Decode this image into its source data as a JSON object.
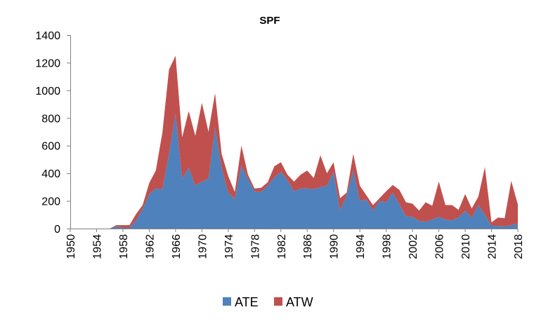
{
  "chart_data": {
    "type": "area",
    "stacked": true,
    "title": "SPF",
    "xlabel": "",
    "ylabel": "",
    "ylim": [
      0,
      1400
    ],
    "yticks": [
      0,
      200,
      400,
      600,
      800,
      1000,
      1200,
      1400
    ],
    "xticks": [
      1950,
      1954,
      1958,
      1962,
      1966,
      1970,
      1974,
      1978,
      1982,
      1986,
      1990,
      1994,
      1998,
      2002,
      2006,
      2010,
      2014,
      2018
    ],
    "x": [
      1950,
      1951,
      1952,
      1953,
      1954,
      1955,
      1956,
      1957,
      1958,
      1959,
      1960,
      1961,
      1962,
      1963,
      1964,
      1965,
      1966,
      1967,
      1968,
      1969,
      1970,
      1971,
      1972,
      1973,
      1974,
      1975,
      1976,
      1977,
      1978,
      1979,
      1980,
      1981,
      1982,
      1983,
      1984,
      1985,
      1986,
      1987,
      1988,
      1989,
      1990,
      1991,
      1992,
      1993,
      1994,
      1995,
      1996,
      1997,
      1998,
      1999,
      2000,
      2001,
      2002,
      2003,
      2004,
      2005,
      2006,
      2007,
      2008,
      2009,
      2010,
      2011,
      2012,
      2013,
      2014,
      2015,
      2016,
      2017,
      2018
    ],
    "series": [
      {
        "name": "ATE",
        "color": "#4f81bd",
        "values": [
          0,
          0,
          0,
          0,
          0,
          0,
          0,
          15,
          5,
          5,
          60,
          140,
          250,
          290,
          285,
          540,
          830,
          360,
          440,
          310,
          340,
          360,
          730,
          440,
          260,
          215,
          455,
          360,
          270,
          265,
          310,
          370,
          410,
          350,
          270,
          290,
          290,
          285,
          300,
          310,
          410,
          130,
          240,
          420,
          200,
          210,
          130,
          200,
          190,
          260,
          175,
          90,
          85,
          55,
          50,
          65,
          85,
          65,
          60,
          80,
          130,
          80,
          170,
          100,
          20,
          20,
          15,
          25,
          35
        ]
      },
      {
        "name": "ATW",
        "color": "#c0504d",
        "values": [
          0,
          0,
          0,
          0,
          0,
          0,
          0,
          10,
          20,
          20,
          45,
          30,
          80,
          130,
          410,
          610,
          420,
          300,
          410,
          360,
          570,
          340,
          250,
          100,
          120,
          50,
          145,
          30,
          20,
          30,
          25,
          80,
          70,
          40,
          70,
          100,
          130,
          80,
          230,
          90,
          70,
          90,
          20,
          120,
          110,
          30,
          40,
          20,
          80,
          55,
          105,
          100,
          95,
          75,
          140,
          100,
          255,
          105,
          110,
          55,
          120,
          65,
          60,
          345,
          25,
          60,
          60,
          320,
          140
        ]
      }
    ],
    "legend": [
      "ATE",
      "ATW"
    ],
    "legend_position": "bottom"
  }
}
